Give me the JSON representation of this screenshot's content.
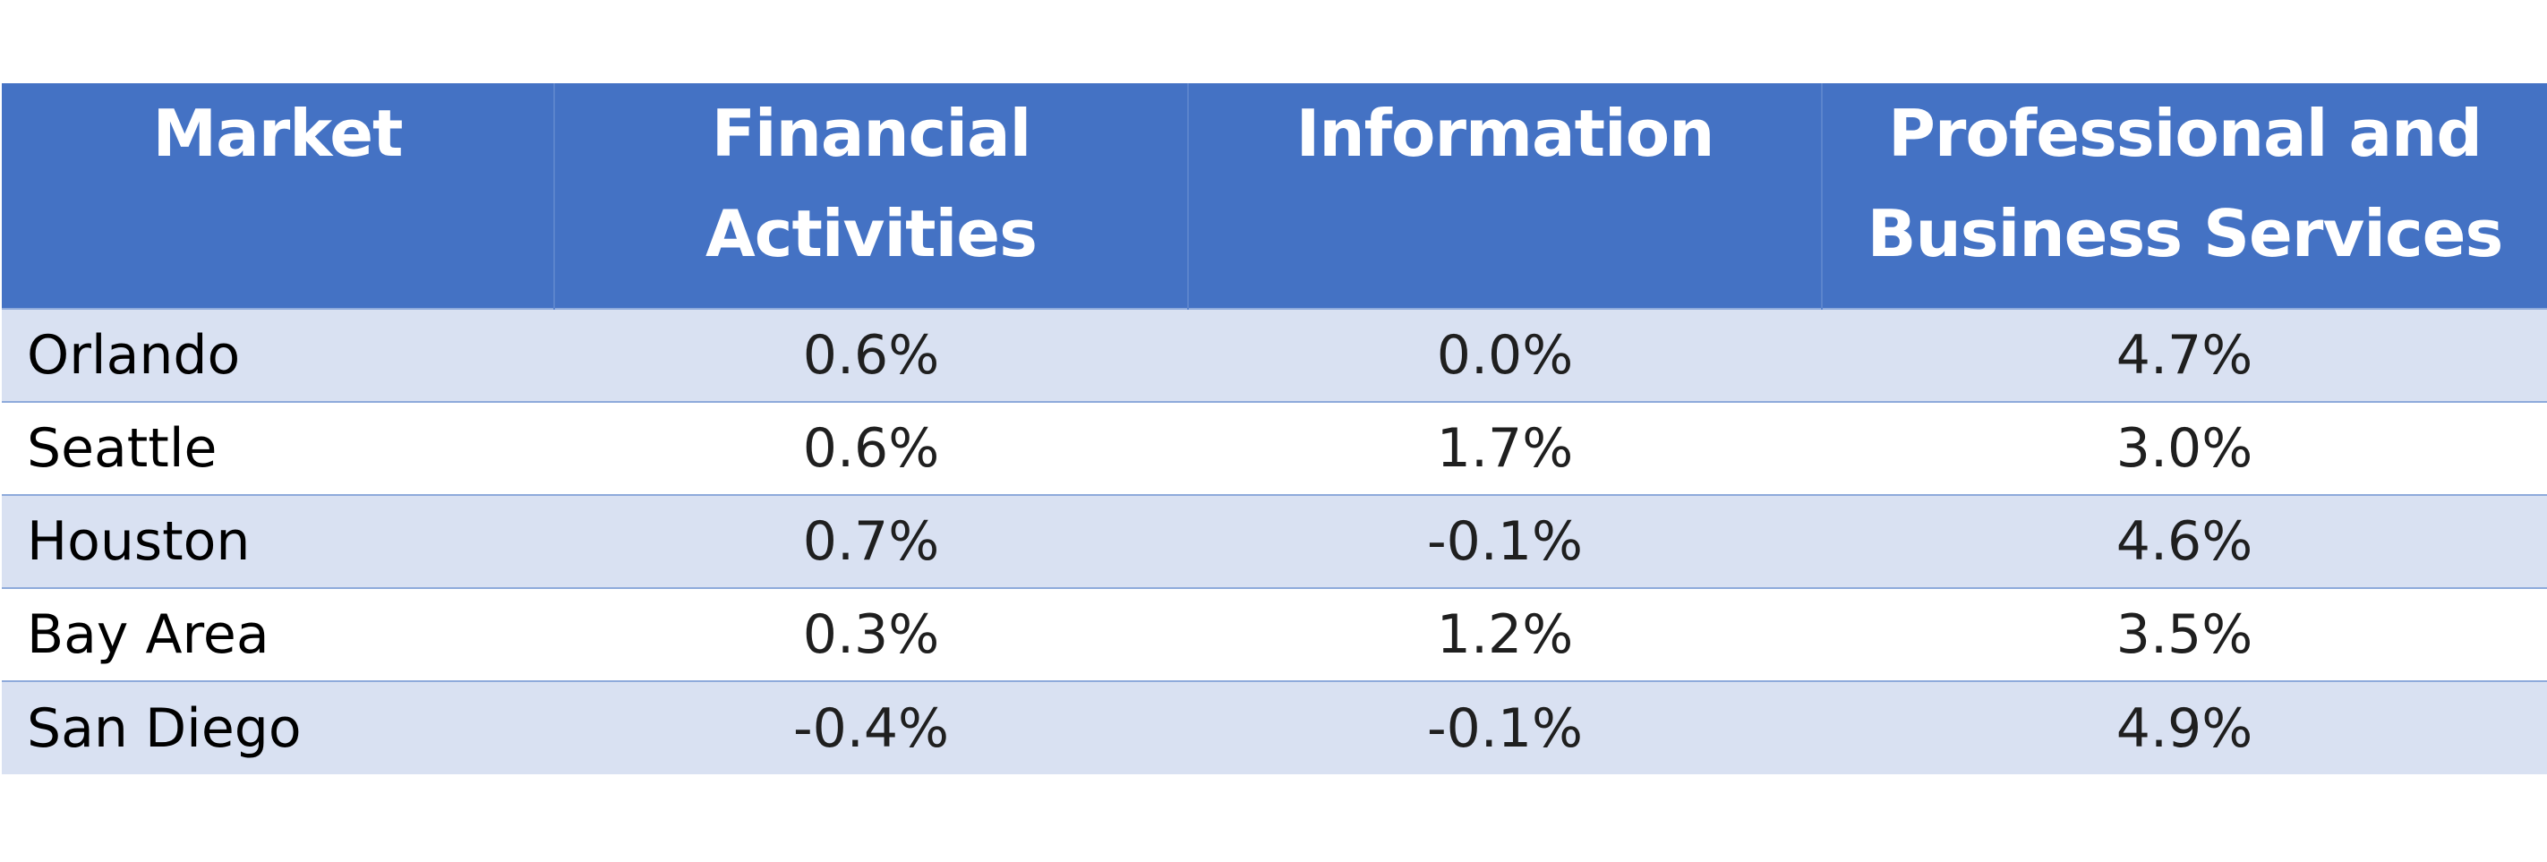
{
  "chart_data": {
    "type": "table",
    "columns": [
      "Market",
      "Financial Activities",
      "Information",
      "Professional and Business Services"
    ],
    "rows": [
      {
        "market": "Orlando",
        "financial": "0.6%",
        "information": "0.0%",
        "professional": "4.7%"
      },
      {
        "market": "Seattle",
        "financial": "0.6%",
        "information": "1.7%",
        "professional": "3.0%"
      },
      {
        "market": "Houston",
        "financial": "0.7%",
        "information": "-0.1%",
        "professional": "4.6%"
      },
      {
        "market": "Bay Area",
        "financial": "0.3%",
        "information": "1.2%",
        "professional": "3.5%"
      },
      {
        "market": "San Diego",
        "financial": "-0.4%",
        "information": "-0.1%",
        "professional": "4.9%"
      }
    ]
  },
  "colors": {
    "header_bg": "#4472C4",
    "header_text": "#FFFFFF",
    "band_row": "#D9E1F2",
    "plain_row": "#FFFFFF",
    "row_border": "#8EAADB"
  }
}
